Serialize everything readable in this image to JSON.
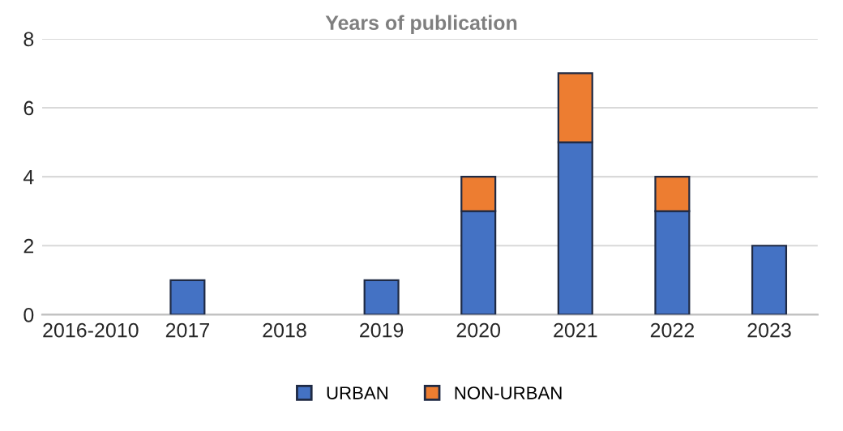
{
  "chart_data": {
    "type": "bar",
    "title": "Years of publication",
    "categories": [
      "2016-2010",
      "2017",
      "2018",
      "2019",
      "2020",
      "2021",
      "2022",
      "2023"
    ],
    "stacked": true,
    "series": [
      {
        "name": "URBAN",
        "color": "#4472c4",
        "values": [
          0,
          1,
          0,
          1,
          3,
          5,
          3,
          2
        ]
      },
      {
        "name": "NON-URBAN",
        "color": "#ed7d31",
        "values": [
          0,
          0,
          0,
          0,
          1,
          2,
          1,
          0
        ]
      }
    ],
    "ylim": [
      0,
      8
    ],
    "yticks": [
      0,
      2,
      4,
      6,
      8
    ],
    "grid": "y",
    "legend": "bottom"
  }
}
